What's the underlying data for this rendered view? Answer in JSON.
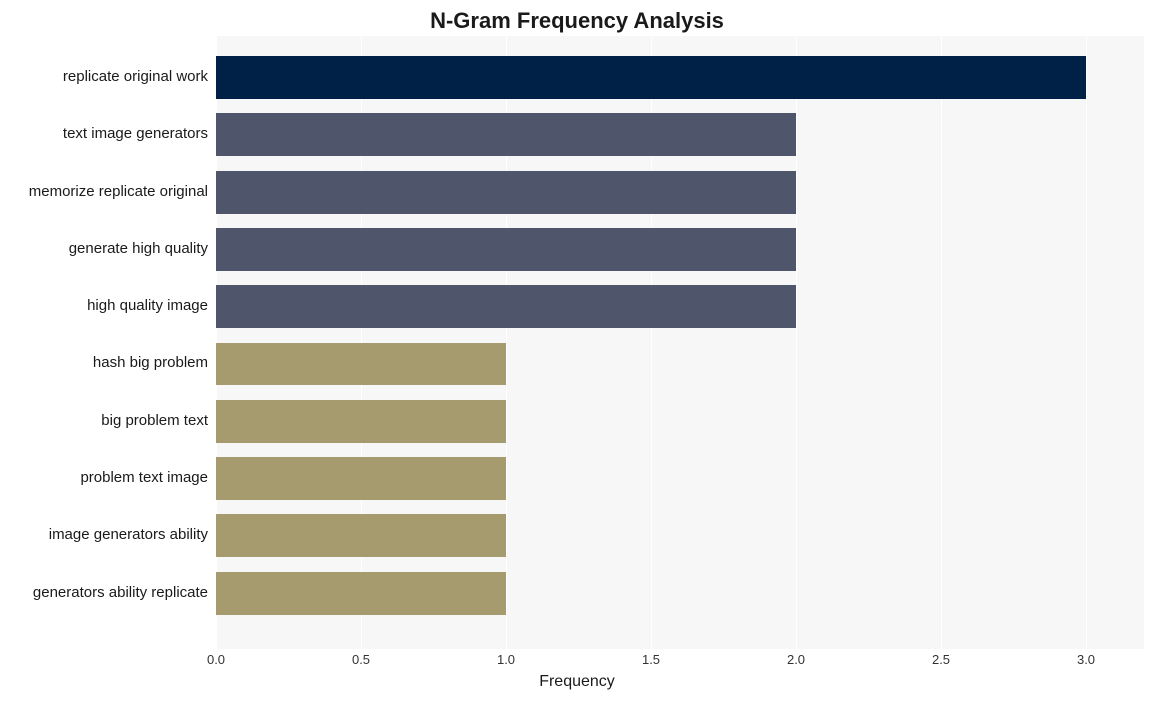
{
  "chart": {
    "type": "bar-horizontal",
    "title": "N-Gram Frequency Analysis",
    "title_fontsize": 22,
    "title_fontweight": 700,
    "x_axis_label": "Frequency",
    "x_axis_label_fontsize": 16,
    "xlim": [
      0.0,
      3.2
    ],
    "x_ticks": [
      0.0,
      0.5,
      1.0,
      1.5,
      2.0,
      2.5,
      3.0
    ],
    "x_tick_fontsize": 13,
    "y_label_fontsize": 15,
    "background_color": "#f7f7f7",
    "grid_color": "#ffffff",
    "bar_gap_ratio": 0.25,
    "categories": [
      "replicate original work",
      "text image generators",
      "memorize replicate original",
      "generate high quality",
      "high quality image",
      "hash big problem",
      "big problem text",
      "problem text image",
      "image generators ability",
      "generators ability replicate"
    ],
    "values": [
      3,
      2,
      2,
      2,
      2,
      1,
      1,
      1,
      1,
      1
    ],
    "bar_colors": [
      "#002147",
      "#4f566b",
      "#4f566b",
      "#4f566b",
      "#4f566b",
      "#a69a6f",
      "#a69a6f",
      "#a69a6f",
      "#a69a6f",
      "#a69a6f"
    ]
  }
}
